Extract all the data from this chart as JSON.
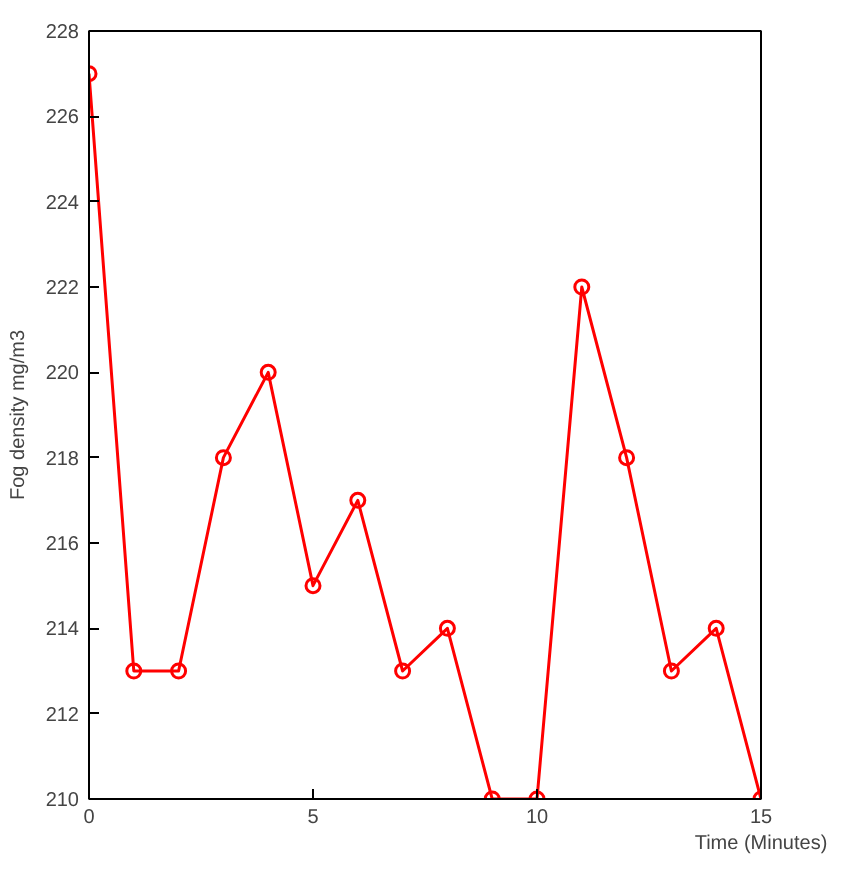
{
  "chart_data": {
    "type": "line",
    "xlabel": "Time (Minutes)",
    "ylabel": "Fog density mg/m3",
    "x": [
      0,
      1,
      2,
      3,
      4,
      5,
      6,
      7,
      8,
      9,
      10,
      11,
      12,
      13,
      14,
      15
    ],
    "series": [
      {
        "color": "#ff0000",
        "values": [
          227,
          213,
          213,
          218,
          220,
          215,
          217,
          213,
          214,
          210,
          210,
          222,
          218,
          213,
          214,
          210
        ]
      }
    ],
    "xlim": [
      0,
      15
    ],
    "ylim": [
      210,
      228
    ],
    "xticks": [
      0,
      5,
      10,
      15
    ],
    "yticks": [
      210,
      212,
      214,
      216,
      218,
      220,
      222,
      224,
      226,
      228
    ],
    "grid": false,
    "marker": "circle",
    "line_style": "solid"
  }
}
